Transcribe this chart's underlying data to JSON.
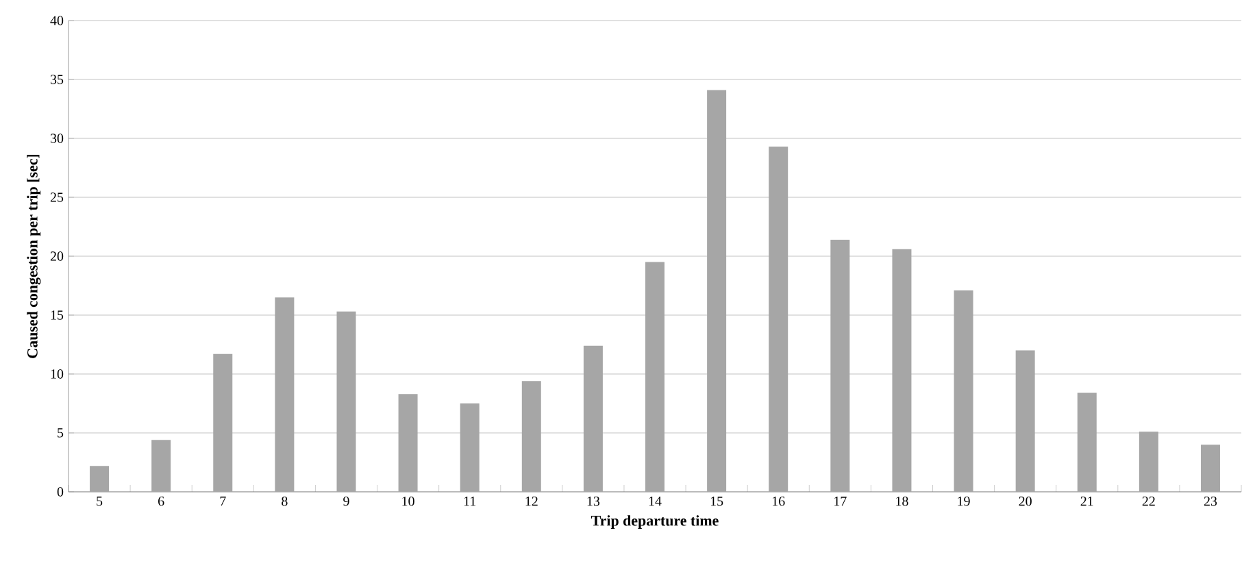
{
  "chart_data": {
    "type": "bar",
    "xlabel": "Trip departure time",
    "ylabel": "Caused congestion per trip [sec]",
    "categories": [
      "5",
      "6",
      "7",
      "8",
      "9",
      "10",
      "11",
      "12",
      "13",
      "14",
      "15",
      "16",
      "17",
      "18",
      "19",
      "20",
      "21",
      "22",
      "23"
    ],
    "values": [
      2.2,
      4.4,
      11.7,
      16.5,
      15.3,
      8.3,
      7.5,
      9.4,
      12.4,
      19.5,
      34.1,
      29.3,
      21.4,
      20.6,
      17.1,
      12.0,
      8.4,
      5.1,
      4.0
    ],
    "color": "#a6a6a6",
    "ylim": [
      0,
      40
    ],
    "yticks": [
      0,
      5,
      10,
      15,
      20,
      25,
      30,
      35,
      40
    ],
    "grid": "y"
  }
}
